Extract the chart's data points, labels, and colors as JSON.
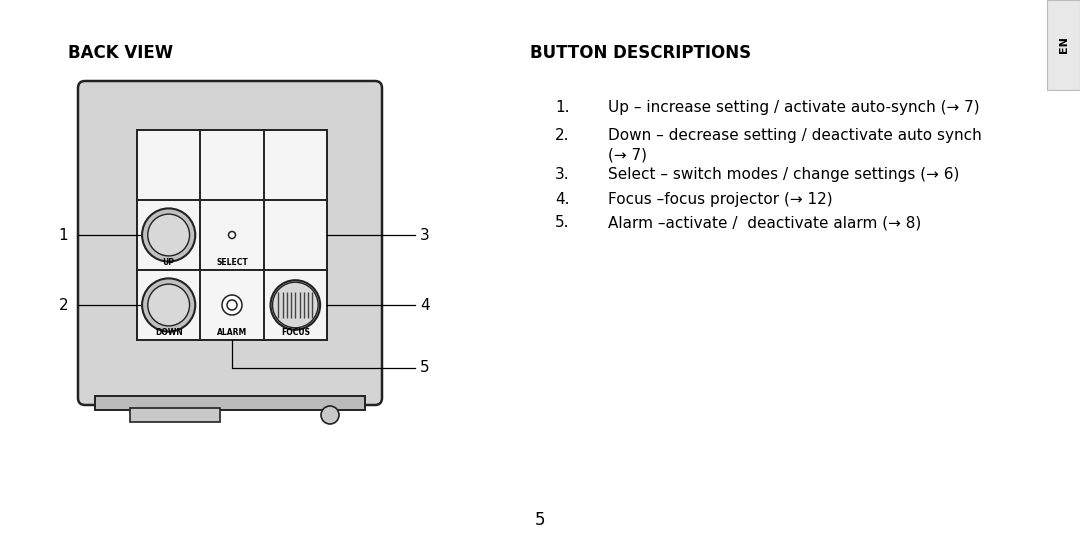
{
  "bg_color": "#ffffff",
  "title_left": "BACK VIEW",
  "title_right": "BUTTON DESCRIPTIONS",
  "page_number": "5",
  "desc_items": [
    {
      "num": "1.",
      "text": "Up – increase setting / activate auto-synch (→ 7)"
    },
    {
      "num": "2.",
      "text": "Down – decrease setting / deactivate auto synch\n(→ 7)"
    },
    {
      "num": "3.",
      "text": "Select – switch modes / change settings (→ 6)"
    },
    {
      "num": "4.",
      "text": "Focus –focus projector (→ 12)"
    },
    {
      "num": "5.",
      "text": "Alarm –activate /  deactivate alarm (→ 8)"
    }
  ],
  "device_bg": "#d4d4d4",
  "device_border": "#222222",
  "panel_bg": "#e0e0e0",
  "panel_border": "#222222",
  "cell_bg": "#f5f5f5",
  "knob_outer": "#c0c0c0",
  "knob_inner": "#d8d8d8",
  "knob_border": "#222222",
  "en_tab_color": "#e8e8e8",
  "en_border": "#bbbbbb",
  "line_color": "#000000",
  "text_color": "#000000",
  "label_fontsize": 5.5,
  "num_fontsize": 11,
  "title_fontsize": 12,
  "desc_fontsize": 11
}
